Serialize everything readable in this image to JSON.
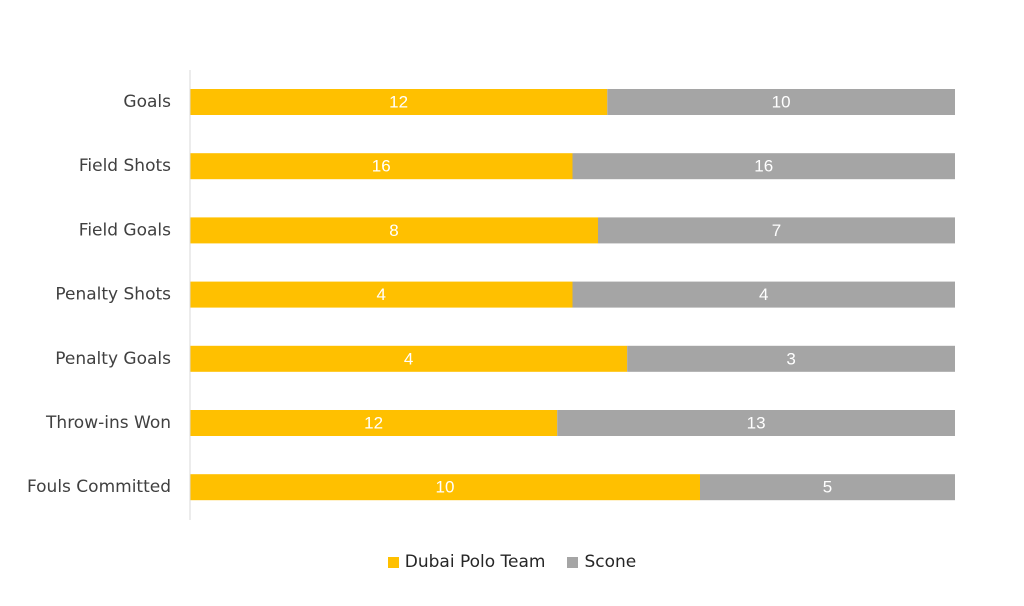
{
  "chart_data": {
    "type": "bar",
    "orientation": "horizontal",
    "stacking": "percent",
    "categories": [
      "Goals",
      "Field Shots",
      "Field Goals",
      "Penalty Shots",
      "Penalty Goals",
      "Throw-ins Won",
      "Fouls Committed"
    ],
    "series": [
      {
        "name": "Dubai Polo Team",
        "values": [
          12,
          16,
          8,
          4,
          4,
          12,
          10
        ],
        "color": "#FFC000"
      },
      {
        "name": "Scone",
        "values": [
          10,
          16,
          7,
          4,
          3,
          13,
          5
        ],
        "color": "#A5A5A5"
      }
    ],
    "title": "",
    "xlabel": "",
    "ylabel": "",
    "data_labels": true,
    "grid": false,
    "legend_position": "bottom"
  }
}
